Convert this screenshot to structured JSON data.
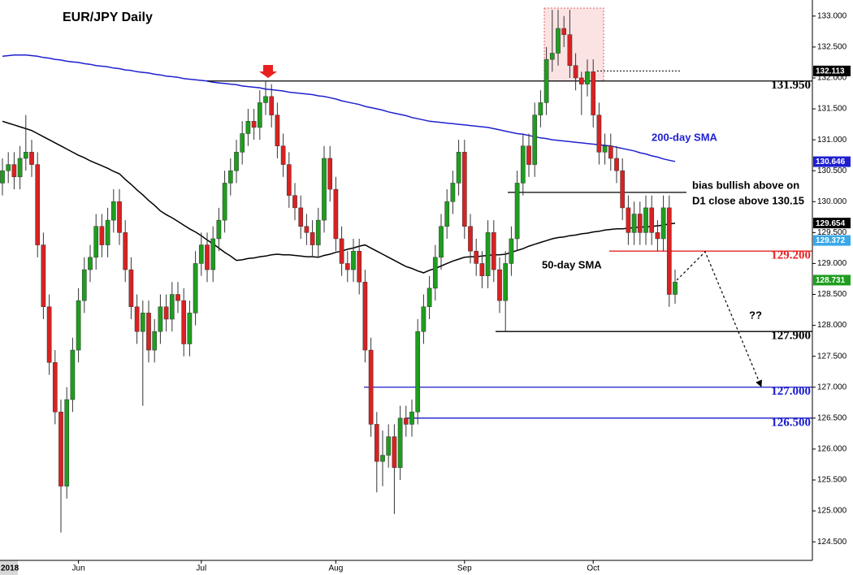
{
  "chart_data": {
    "type": "candlestick",
    "title": "EUR/JPY Daily",
    "categories": [
      "2018",
      null,
      null,
      null,
      null,
      null,
      null,
      null,
      null,
      null,
      null,
      null,
      null,
      "Jun",
      null,
      null,
      null,
      null,
      null,
      null,
      null,
      null,
      null,
      null,
      null,
      null,
      null,
      null,
      null,
      null,
      null,
      null,
      null,
      null,
      "Jul",
      null,
      null,
      null,
      null,
      null,
      null,
      null,
      null,
      null,
      null,
      null,
      null,
      null,
      null,
      null,
      null,
      null,
      null,
      null,
      null,
      null,
      null,
      "Aug",
      null,
      null,
      null,
      null,
      null,
      null,
      null,
      null,
      null,
      null,
      null,
      null,
      null,
      null,
      null,
      null,
      null,
      null,
      null,
      null,
      null,
      "Sep",
      null,
      null,
      null,
      null,
      null,
      null,
      null,
      null,
      null,
      null,
      null,
      null,
      null,
      null,
      null,
      null,
      null,
      null,
      null,
      null,
      null,
      "Oct",
      null,
      null,
      null,
      null,
      null,
      null,
      null,
      null,
      null,
      null,
      null,
      null,
      null,
      null
    ],
    "open": [
      130.3,
      130.5,
      130.6,
      130.4,
      130.7,
      130.8,
      130.6,
      129.3,
      128.3,
      127.4,
      126.6,
      125.4,
      126.8,
      127.6,
      128.4,
      128.9,
      129.1,
      129.6,
      129.3,
      129.7,
      130.0,
      129.5,
      128.9,
      128.3,
      127.9,
      128.2,
      127.6,
      127.9,
      128.3,
      128.1,
      128.5,
      128.4,
      127.7,
      128.2,
      129.0,
      129.3,
      128.9,
      129.4,
      129.7,
      130.3,
      130.5,
      130.8,
      131.1,
      131.3,
      131.2,
      131.6,
      131.7,
      131.4,
      130.9,
      130.6,
      130.1,
      129.9,
      129.6,
      129.5,
      129.3,
      129.7,
      130.7,
      130.2,
      129.4,
      129.0,
      128.9,
      129.2,
      128.7,
      127.6,
      126.4,
      125.8,
      125.9,
      126.2,
      125.7,
      126.5,
      126.4,
      126.6,
      127.9,
      128.3,
      128.6,
      129.1,
      129.6,
      130.0,
      130.3,
      130.8,
      129.6,
      129.2,
      129.0,
      128.8,
      129.5,
      128.9,
      128.4,
      129.0,
      129.4,
      130.3,
      130.9,
      130.6,
      131.4,
      131.6,
      132.3,
      132.4,
      132.8,
      132.7,
      132.2,
      132.0,
      131.9,
      132.1,
      131.4,
      130.8,
      130.9,
      130.7,
      130.5,
      129.9,
      129.5,
      129.8,
      129.5,
      129.9,
      129.5,
      129.4,
      129.9,
      128.5
    ],
    "high": [
      130.7,
      130.8,
      130.8,
      130.9,
      131.4,
      131.0,
      130.8,
      129.5,
      128.5,
      127.6,
      126.8,
      127.0,
      127.8,
      128.6,
      129.1,
      129.3,
      129.8,
      129.8,
      129.9,
      130.2,
      130.2,
      129.7,
      129.1,
      128.5,
      128.4,
      128.4,
      128.1,
      128.5,
      128.5,
      128.7,
      128.7,
      128.6,
      128.4,
      129.2,
      129.5,
      129.5,
      129.6,
      129.9,
      130.5,
      130.7,
      131.0,
      131.3,
      131.5,
      131.5,
      131.8,
      131.95,
      131.9,
      131.6,
      131.1,
      130.8,
      130.3,
      130.1,
      129.8,
      129.7,
      129.9,
      130.9,
      130.9,
      130.4,
      129.6,
      129.2,
      129.4,
      129.4,
      128.9,
      127.8,
      126.6,
      126.3,
      126.4,
      126.4,
      126.7,
      126.7,
      126.8,
      128.1,
      128.5,
      128.8,
      129.3,
      129.8,
      130.2,
      130.5,
      131.0,
      131.0,
      129.8,
      129.4,
      129.2,
      129.7,
      129.7,
      129.1,
      129.2,
      129.6,
      130.5,
      131.1,
      131.1,
      131.6,
      131.8,
      132.5,
      133.1,
      133.1,
      133.0,
      133.1,
      132.4,
      132.1,
      132.3,
      132.3,
      131.6,
      131.1,
      131.1,
      130.9,
      130.7,
      130.1,
      130.0,
      130.0,
      130.1,
      130.1,
      129.7,
      130.1,
      130.1,
      128.9
    ],
    "low": [
      130.1,
      130.3,
      130.2,
      130.2,
      130.5,
      130.4,
      129.1,
      128.1,
      127.2,
      126.4,
      124.65,
      125.2,
      126.6,
      127.4,
      128.2,
      128.7,
      128.9,
      129.1,
      129.1,
      129.5,
      129.3,
      128.7,
      128.1,
      127.7,
      126.7,
      127.4,
      127.4,
      127.7,
      127.9,
      127.9,
      128.2,
      127.5,
      127.5,
      128.0,
      128.8,
      128.7,
      128.7,
      129.2,
      129.5,
      130.1,
      130.3,
      130.6,
      130.9,
      131.0,
      131.0,
      131.4,
      131.2,
      130.7,
      130.4,
      129.9,
      129.7,
      129.4,
      129.3,
      129.1,
      129.1,
      129.5,
      130.0,
      129.2,
      128.8,
      128.7,
      128.7,
      128.5,
      127.4,
      126.2,
      125.3,
      125.4,
      125.7,
      124.95,
      125.5,
      126.2,
      126.2,
      126.4,
      127.7,
      128.1,
      128.4,
      128.9,
      129.4,
      129.8,
      130.1,
      129.4,
      129.0,
      128.8,
      128.6,
      128.6,
      128.7,
      128.2,
      127.9,
      128.8,
      129.2,
      130.1,
      130.4,
      130.4,
      131.2,
      131.4,
      132.1,
      132.2,
      132.5,
      132.0,
      131.8,
      131.4,
      131.7,
      131.2,
      130.6,
      130.6,
      130.5,
      130.3,
      129.7,
      129.3,
      129.3,
      129.3,
      129.3,
      129.3,
      129.2,
      129.2,
      128.3,
      128.35
    ],
    "close": [
      130.5,
      130.6,
      130.4,
      130.7,
      130.8,
      130.6,
      129.3,
      128.3,
      127.4,
      126.6,
      125.4,
      126.8,
      127.6,
      128.4,
      128.9,
      129.1,
      129.6,
      129.3,
      129.7,
      130.0,
      129.5,
      128.9,
      128.3,
      127.9,
      128.2,
      127.6,
      127.9,
      128.3,
      128.1,
      128.5,
      128.4,
      127.7,
      128.2,
      129.0,
      129.3,
      128.9,
      129.4,
      129.7,
      130.3,
      130.5,
      130.8,
      131.1,
      131.3,
      131.2,
      131.6,
      131.7,
      131.4,
      130.9,
      130.6,
      130.1,
      129.9,
      129.6,
      129.5,
      129.3,
      129.7,
      130.7,
      130.2,
      129.4,
      129.0,
      128.9,
      129.2,
      128.7,
      127.6,
      126.4,
      125.8,
      125.9,
      126.2,
      125.7,
      126.5,
      126.4,
      126.6,
      127.9,
      128.3,
      128.6,
      129.1,
      129.6,
      130.0,
      130.3,
      130.8,
      129.6,
      129.2,
      129.0,
      128.8,
      129.5,
      128.9,
      128.4,
      129.0,
      129.4,
      130.3,
      130.9,
      130.6,
      131.4,
      131.6,
      132.3,
      132.4,
      132.8,
      132.7,
      132.2,
      132.0,
      131.9,
      132.1,
      131.4,
      130.8,
      130.9,
      130.7,
      130.5,
      129.9,
      129.5,
      129.8,
      129.5,
      129.9,
      129.5,
      129.4,
      129.9,
      128.5,
      128.7
    ],
    "up_color": "#1e9e1e",
    "down_color": "#d82222",
    "series": [
      {
        "name": "200-day SMA",
        "color": "#1f1fd0",
        "values": [
          132.35,
          132.36,
          132.37,
          132.37,
          132.37,
          132.36,
          132.35,
          132.33,
          132.32,
          132.3,
          132.29,
          132.27,
          132.26,
          132.25,
          132.23,
          132.22,
          132.2,
          132.19,
          132.18,
          132.16,
          132.15,
          132.13,
          132.12,
          132.1,
          132.09,
          132.08,
          132.06,
          132.05,
          132.03,
          132.02,
          132.01,
          131.99,
          131.98,
          131.97,
          131.96,
          131.95,
          131.93,
          131.92,
          131.91,
          131.9,
          131.89,
          131.87,
          131.86,
          131.85,
          131.84,
          131.82,
          131.81,
          131.8,
          131.79,
          131.77,
          131.76,
          131.75,
          131.74,
          131.73,
          131.71,
          131.7,
          131.68,
          131.66,
          131.63,
          131.61,
          131.59,
          131.57,
          131.54,
          131.52,
          131.5,
          131.48,
          131.45,
          131.43,
          131.41,
          131.39,
          131.36,
          131.34,
          131.32,
          131.3,
          131.29,
          131.28,
          131.27,
          131.26,
          131.25,
          131.24,
          131.23,
          131.22,
          131.21,
          131.2,
          131.18,
          131.16,
          131.14,
          131.12,
          131.1,
          131.09,
          131.07,
          131.05,
          131.03,
          131.02,
          131.0,
          130.99,
          130.98,
          130.97,
          130.96,
          130.95,
          130.94,
          130.93,
          130.92,
          130.91,
          130.9,
          130.88,
          130.86,
          130.84,
          130.82,
          130.79,
          130.77,
          130.74,
          130.72,
          130.69,
          130.67,
          130.65
        ]
      },
      {
        "name": "50-day SMA",
        "color": "#000000",
        "values": [
          131.3,
          131.27,
          131.24,
          131.21,
          131.18,
          131.15,
          131.1,
          131.05,
          131.0,
          130.95,
          130.9,
          130.85,
          130.8,
          130.75,
          130.71,
          130.66,
          130.62,
          130.58,
          130.54,
          130.49,
          130.45,
          130.36,
          130.28,
          130.19,
          130.11,
          130.02,
          129.94,
          129.85,
          129.79,
          129.74,
          129.68,
          129.62,
          129.56,
          129.51,
          129.45,
          129.38,
          129.32,
          129.25,
          129.18,
          129.12,
          129.05,
          129.06,
          129.08,
          129.09,
          129.11,
          129.12,
          129.14,
          129.15,
          129.14,
          129.14,
          129.13,
          129.12,
          129.11,
          129.11,
          129.1,
          129.13,
          129.15,
          129.18,
          129.2,
          129.23,
          129.25,
          129.28,
          129.3,
          129.25,
          129.2,
          129.15,
          129.1,
          129.05,
          129.0,
          128.95,
          128.92,
          128.88,
          128.85,
          128.89,
          128.92,
          128.96,
          129.0,
          129.04,
          129.07,
          129.1,
          129.11,
          129.11,
          129.12,
          129.13,
          129.14,
          129.14,
          129.15,
          129.18,
          129.21,
          129.24,
          129.28,
          129.31,
          129.34,
          129.37,
          129.4,
          129.42,
          129.43,
          129.45,
          129.46,
          129.48,
          129.49,
          129.51,
          129.52,
          129.54,
          129.55,
          129.56,
          129.56,
          129.57,
          129.58,
          129.59,
          129.59,
          129.6,
          129.61,
          129.62,
          129.64,
          129.65
        ]
      }
    ],
    "ylim": [
      124.2,
      133.26
    ],
    "yticks": [
      {
        "value": 124.5,
        "label": "124.500"
      },
      {
        "value": 125,
        "label": "125.000"
      },
      {
        "value": 125.5,
        "label": "125.500"
      },
      {
        "value": 126,
        "label": "126.000"
      },
      {
        "value": 126.5,
        "label": "126.500"
      },
      {
        "value": 127,
        "label": "127.000"
      },
      {
        "value": 127.5,
        "label": "127.500"
      },
      {
        "value": 128,
        "label": "128.000"
      },
      {
        "value": 128.5,
        "label": "128.500"
      },
      {
        "value": 129,
        "label": "129.000"
      },
      {
        "value": 129.5,
        "label": "129.500"
      },
      {
        "value": 130,
        "label": "130.000"
      },
      {
        "value": 130.5,
        "label": "130.500"
      },
      {
        "value": 131,
        "label": "131.000"
      },
      {
        "value": 131.5,
        "label": "131.500"
      },
      {
        "value": 132,
        "label": "132.000"
      },
      {
        "value": 132.5,
        "label": "132.500"
      },
      {
        "value": 133,
        "label": "133.000"
      }
    ],
    "levels": [
      {
        "value": 131.95,
        "label": "131.950",
        "color": "#000000"
      },
      {
        "value": 129.2,
        "label": "129.200",
        "color": "#e42525"
      },
      {
        "value": 127.9,
        "label": "127.900",
        "color": "#000000"
      },
      {
        "value": 127,
        "label": "127.000",
        "color": "#1a1acc"
      },
      {
        "value": 126.5,
        "label": "126.500",
        "color": "#1a1acc"
      },
      {
        "value": 130.15,
        "color": "#000000"
      }
    ],
    "price_tags": [
      {
        "value": 132.113,
        "color": "#000000"
      },
      {
        "value": 130.646,
        "color": "#1f1fd0"
      },
      {
        "value": 129.654,
        "color": "#000000"
      },
      {
        "value": 129.372,
        "color": "#3aa8e8"
      },
      {
        "value": 128.731,
        "color": "#1e9e1e"
      }
    ],
    "annotations": [
      "bias bullish above on",
      "D1 close above 130.15",
      "??"
    ]
  }
}
